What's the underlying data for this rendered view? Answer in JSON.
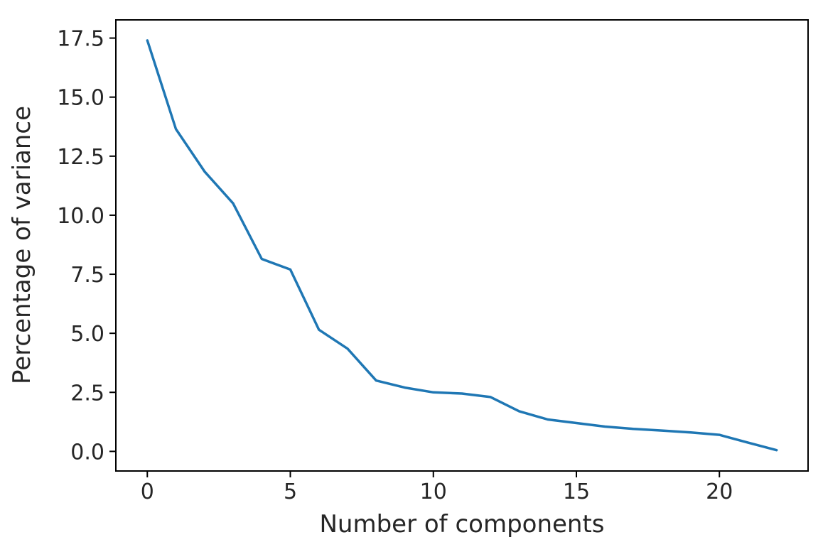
{
  "figure": {
    "background": "#ffffff"
  },
  "chart_data": {
    "type": "line",
    "title": "",
    "xlabel": "Number of components",
    "ylabel": "Percentage of variance",
    "x": [
      0,
      1,
      2,
      3,
      4,
      5,
      6,
      7,
      8,
      9,
      10,
      11,
      12,
      13,
      14,
      15,
      16,
      17,
      18,
      19,
      20,
      21,
      22
    ],
    "y": [
      17.4,
      13.65,
      11.85,
      10.5,
      8.15,
      7.7,
      5.15,
      4.35,
      3.0,
      2.7,
      2.5,
      2.45,
      2.3,
      1.7,
      1.35,
      1.2,
      1.05,
      0.95,
      0.88,
      0.8,
      0.7,
      0.37,
      0.05
    ],
    "xlim": [
      -1.1,
      23.1
    ],
    "ylim": [
      -0.83,
      18.27
    ],
    "xticks": {
      "values": [
        0,
        5,
        10,
        15,
        20
      ],
      "labels": [
        "0",
        "5",
        "10",
        "15",
        "20"
      ]
    },
    "yticks": {
      "values": [
        0,
        2.5,
        5,
        7.5,
        10,
        12.5,
        15,
        17.5
      ],
      "labels": [
        "0.0",
        "2.5",
        "5.0",
        "7.5",
        "10.0",
        "12.5",
        "15.0",
        "17.5"
      ]
    },
    "grid": false,
    "legend": "none",
    "line_color": "#1f77b4",
    "axis_color": "#000000",
    "text_color": "#262626"
  }
}
